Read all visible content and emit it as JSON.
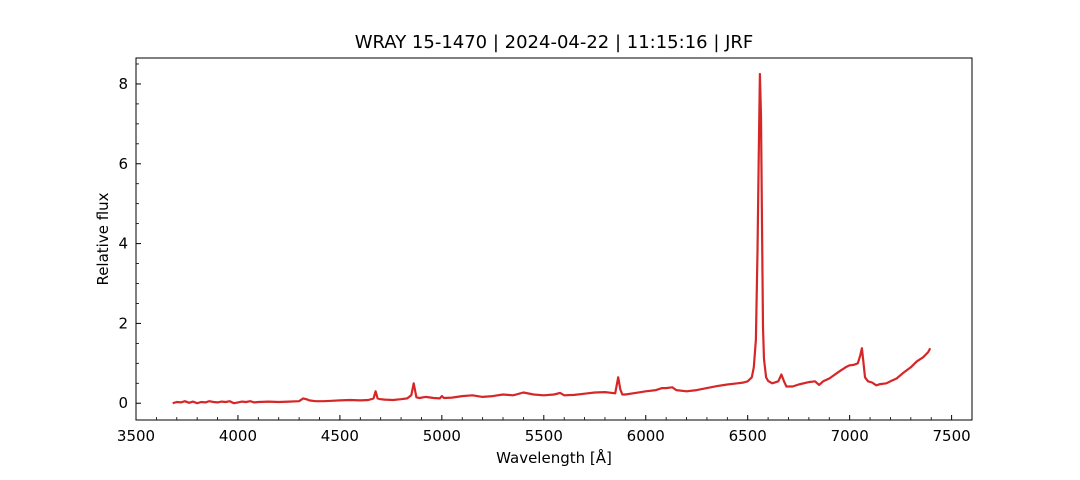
{
  "chart_data": {
    "type": "line",
    "title": "WRAY 15-1470 | 2024-04-22 | 11:15:16 | JRF",
    "xlabel": "Wavelength [Å]",
    "ylabel": "Relative flux",
    "xlim": [
      3500,
      7600
    ],
    "ylim": [
      -0.42,
      8.65
    ],
    "x_ticks": [
      3500,
      4000,
      4500,
      5000,
      5500,
      6000,
      6500,
      7000,
      7500
    ],
    "y_ticks": [
      0,
      2,
      4,
      6,
      8
    ],
    "grid": false,
    "ticks_direction": "in",
    "series": [
      {
        "color": "#d62728",
        "x": [
          3680,
          3700,
          3720,
          3740,
          3760,
          3780,
          3800,
          3820,
          3840,
          3860,
          3880,
          3900,
          3920,
          3940,
          3960,
          3980,
          4000,
          4020,
          4040,
          4060,
          4080,
          4100,
          4150,
          4200,
          4250,
          4300,
          4320,
          4335,
          4350,
          4380,
          4420,
          4460,
          4500,
          4550,
          4600,
          4640,
          4665,
          4675,
          4685,
          4700,
          4720,
          4760,
          4800,
          4830,
          4850,
          4862,
          4875,
          4890,
          4920,
          4960,
          4990,
          5000,
          5010,
          5050,
          5100,
          5150,
          5200,
          5250,
          5300,
          5350,
          5400,
          5450,
          5500,
          5550,
          5580,
          5600,
          5650,
          5700,
          5750,
          5800,
          5850,
          5865,
          5875,
          5885,
          5900,
          5950,
          6000,
          6050,
          6080,
          6100,
          6130,
          6150,
          6200,
          6250,
          6300,
          6350,
          6400,
          6450,
          6480,
          6500,
          6520,
          6530,
          6540,
          6548,
          6555,
          6560,
          6565,
          6570,
          6575,
          6580,
          6590,
          6600,
          6620,
          6650,
          6665,
          6678,
          6690,
          6720,
          6750,
          6800,
          6830,
          6850,
          6870,
          6900,
          6950,
          6980,
          7000,
          7020,
          7040,
          7052,
          7060,
          7066,
          7075,
          7090,
          7110,
          7130,
          7150,
          7180,
          7200,
          7230,
          7260,
          7300,
          7330,
          7360,
          7385,
          7395
        ],
        "y": [
          0.0,
          0.03,
          0.02,
          0.05,
          0.01,
          0.04,
          0.0,
          0.03,
          0.02,
          0.05,
          0.03,
          0.02,
          0.04,
          0.03,
          0.05,
          0.0,
          0.02,
          0.04,
          0.03,
          0.05,
          0.02,
          0.03,
          0.04,
          0.03,
          0.04,
          0.05,
          0.12,
          0.1,
          0.07,
          0.05,
          0.05,
          0.06,
          0.07,
          0.08,
          0.07,
          0.08,
          0.12,
          0.3,
          0.12,
          0.1,
          0.09,
          0.08,
          0.1,
          0.12,
          0.2,
          0.5,
          0.15,
          0.13,
          0.16,
          0.13,
          0.12,
          0.18,
          0.13,
          0.14,
          0.18,
          0.2,
          0.16,
          0.18,
          0.22,
          0.2,
          0.27,
          0.22,
          0.2,
          0.22,
          0.26,
          0.2,
          0.21,
          0.24,
          0.27,
          0.28,
          0.25,
          0.65,
          0.35,
          0.22,
          0.22,
          0.26,
          0.3,
          0.33,
          0.38,
          0.38,
          0.4,
          0.33,
          0.3,
          0.33,
          0.38,
          0.43,
          0.47,
          0.5,
          0.52,
          0.55,
          0.65,
          0.9,
          1.6,
          3.8,
          6.5,
          8.25,
          7.2,
          4.5,
          1.9,
          1.1,
          0.65,
          0.56,
          0.5,
          0.55,
          0.72,
          0.55,
          0.42,
          0.42,
          0.47,
          0.53,
          0.55,
          0.46,
          0.55,
          0.62,
          0.8,
          0.9,
          0.95,
          0.96,
          1.0,
          1.2,
          1.38,
          1.1,
          0.65,
          0.55,
          0.52,
          0.45,
          0.48,
          0.5,
          0.55,
          0.62,
          0.75,
          0.9,
          1.05,
          1.15,
          1.28,
          1.38
        ]
      }
    ]
  }
}
